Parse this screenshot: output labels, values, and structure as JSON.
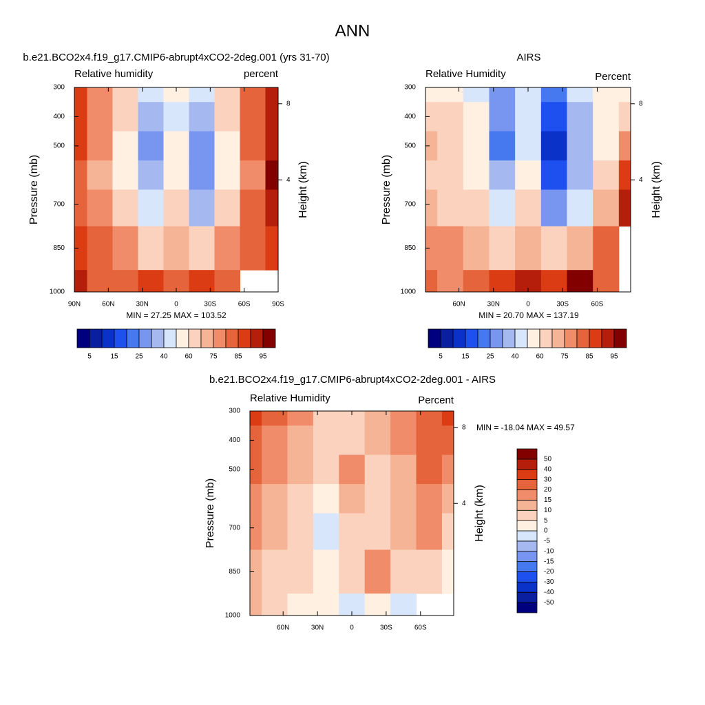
{
  "title": "ANN",
  "chart_data": [
    {
      "type": "contour",
      "title": "b.e21.BCO2x4.f19_g17.CMIP6-abrupt4xCO2-2deg.001 (yrs 31-70)",
      "subtitle_left": "Relative humidity",
      "subtitle_right": "percent",
      "ylabel": "Pressure (mb)",
      "y2label": "Height (km)",
      "annotation": "MIN =  27.25  MAX = 103.52",
      "x": [
        90,
        67.5,
        45,
        22.5,
        0,
        -22.5,
        -45,
        -67.5,
        -90
      ],
      "y": [
        300,
        400,
        500,
        600,
        700,
        850,
        1000
      ],
      "values": [
        [
          85,
          75,
          62,
          40,
          50,
          45,
          65,
          80,
          90
        ],
        [
          88,
          78,
          60,
          35,
          45,
          30,
          60,
          82,
          92
        ],
        [
          85,
          75,
          58,
          28,
          50,
          25,
          55,
          80,
          92
        ],
        [
          82,
          72,
          58,
          32,
          55,
          28,
          55,
          78,
          95
        ],
        [
          80,
          75,
          65,
          40,
          62,
          35,
          62,
          80,
          90
        ],
        [
          85,
          80,
          78,
          65,
          72,
          68,
          78,
          82,
          85
        ],
        [
          90,
          82,
          80,
          85,
          82,
          88,
          82,
          null,
          null
        ]
      ],
      "xlim": [
        90,
        -90
      ],
      "ylim": [
        300,
        1000
      ],
      "xticks": [
        {
          "value": 90,
          "label": "90N"
        },
        {
          "value": 60,
          "label": "60N"
        },
        {
          "value": 30,
          "label": "30N"
        },
        0,
        {
          "value": -30,
          "label": "30S"
        },
        {
          "value": -60,
          "label": "60S"
        },
        {
          "value": -90,
          "label": "90S"
        }
      ],
      "yticks": [
        300,
        400,
        500,
        700,
        850,
        1000
      ],
      "y2ticks": [
        8,
        4
      ],
      "colorbar": {
        "orientation": "horizontal",
        "levels": [
          5,
          10,
          15,
          20,
          25,
          30,
          40,
          50,
          60,
          70,
          75,
          80,
          85,
          90,
          95
        ],
        "ticks": [
          5,
          15,
          25,
          40,
          60,
          75,
          85,
          95
        ],
        "colors": [
          "#00007f",
          "#0a1ea0",
          "#0a32c8",
          "#1e50f0",
          "#4678f0",
          "#7896f0",
          "#a5b9f0",
          "#d7e6fa",
          "#fff0e1",
          "#fad2be",
          "#f5b496",
          "#f08c69",
          "#e6643c",
          "#dc3c14",
          "#b41e0a",
          "#820000"
        ]
      }
    },
    {
      "type": "contour",
      "title": "AIRS",
      "subtitle_left": "Relative Humidity",
      "subtitle_right": "Percent",
      "ylabel": "Pressure (mb)",
      "y2label": "Height (km)",
      "annotation": "MIN =  20.70  MAX = 137.19",
      "x": [
        90,
        67.5,
        45,
        22.5,
        0,
        -22.5,
        -45,
        -67.5,
        -90
      ],
      "y": [
        300,
        400,
        500,
        600,
        700,
        850,
        1000
      ],
      "values": [
        [
          50,
          55,
          45,
          25,
          45,
          20,
          40,
          55,
          50
        ],
        [
          62,
          65,
          50,
          25,
          45,
          15,
          35,
          55,
          60
        ],
        [
          70,
          62,
          50,
          22,
          48,
          12,
          30,
          55,
          78
        ],
        [
          65,
          62,
          55,
          30,
          55,
          15,
          35,
          60,
          85
        ],
        [
          70,
          68,
          60,
          40,
          60,
          25,
          40,
          70,
          90
        ],
        [
          75,
          75,
          72,
          65,
          72,
          65,
          70,
          80,
          null
        ],
        [
          80,
          78,
          82,
          85,
          90,
          85,
          95,
          80,
          null
        ]
      ],
      "xlim": [
        89,
        -89
      ],
      "ylim": [
        300,
        1000
      ],
      "xticks": [
        {
          "value": 60,
          "label": "60N"
        },
        {
          "value": 30,
          "label": "30N"
        },
        0,
        {
          "value": -30,
          "label": "30S"
        },
        {
          "value": -60,
          "label": "60S"
        }
      ],
      "yticks": [
        300,
        400,
        500,
        700,
        850,
        1000
      ],
      "y2ticks": [
        8,
        4
      ],
      "colorbar": {
        "orientation": "horizontal",
        "levels": [
          5,
          10,
          15,
          20,
          25,
          30,
          40,
          50,
          60,
          70,
          75,
          80,
          85,
          90,
          95
        ],
        "ticks": [
          5,
          15,
          25,
          40,
          60,
          75,
          85,
          95
        ],
        "colors": [
          "#00007f",
          "#0a1ea0",
          "#0a32c8",
          "#1e50f0",
          "#4678f0",
          "#7896f0",
          "#a5b9f0",
          "#d7e6fa",
          "#fff0e1",
          "#fad2be",
          "#f5b496",
          "#f08c69",
          "#e6643c",
          "#dc3c14",
          "#b41e0a",
          "#820000"
        ]
      }
    },
    {
      "type": "contour",
      "title": "b.e21.BCO2x4.f19_g17.CMIP6-abrupt4xCO2-2deg.001 - AIRS",
      "subtitle_left": "Relative Humidity",
      "subtitle_right": "Percent",
      "ylabel": "Pressure (mb)",
      "y2label": "Height (km)",
      "annotation": "MIN = -18.04  MAX =  49.57",
      "x": [
        90,
        67.5,
        45,
        22.5,
        0,
        -22.5,
        -45,
        -67.5,
        -90
      ],
      "y": [
        300,
        400,
        500,
        600,
        700,
        850,
        1000
      ],
      "values": [
        [
          30,
          22,
          15,
          8,
          6,
          12,
          15,
          25,
          30
        ],
        [
          25,
          18,
          12,
          6,
          5,
          10,
          15,
          22,
          28
        ],
        [
          20,
          18,
          10,
          8,
          15,
          8,
          12,
          22,
          18
        ],
        [
          18,
          12,
          8,
          2,
          12,
          6,
          10,
          18,
          12
        ],
        [
          15,
          10,
          6,
          -2,
          8,
          8,
          12,
          15,
          8
        ],
        [
          12,
          8,
          6,
          3,
          5,
          15,
          8,
          5,
          2
        ],
        [
          10,
          5,
          3,
          2,
          -5,
          3,
          -5,
          null,
          null
        ]
      ],
      "xlim": [
        89,
        -89
      ],
      "ylim": [
        300,
        1000
      ],
      "xticks": [
        {
          "value": 60,
          "label": "60N"
        },
        {
          "value": 30,
          "label": "30N"
        },
        0,
        {
          "value": -30,
          "label": "30S"
        },
        {
          "value": -60,
          "label": "60S"
        }
      ],
      "yticks": [
        300,
        400,
        500,
        700,
        850,
        1000
      ],
      "y2ticks": [
        8,
        4
      ],
      "colorbar": {
        "orientation": "vertical",
        "levels": [
          -50,
          -40,
          -30,
          -20,
          -15,
          -10,
          -5,
          0,
          5,
          10,
          15,
          20,
          30,
          40,
          50
        ],
        "ticks": [
          -50,
          -40,
          -30,
          -20,
          -15,
          -10,
          -5,
          0,
          5,
          10,
          15,
          20,
          30,
          40,
          50
        ],
        "colors": [
          "#00007f",
          "#0a1ea0",
          "#0a32c8",
          "#1e50f0",
          "#4678f0",
          "#7896f0",
          "#a5b9f0",
          "#d7e6fa",
          "#fff0e1",
          "#fad2be",
          "#f5b496",
          "#f08c69",
          "#e6643c",
          "#dc3c14",
          "#b41e0a",
          "#820000"
        ]
      }
    }
  ]
}
